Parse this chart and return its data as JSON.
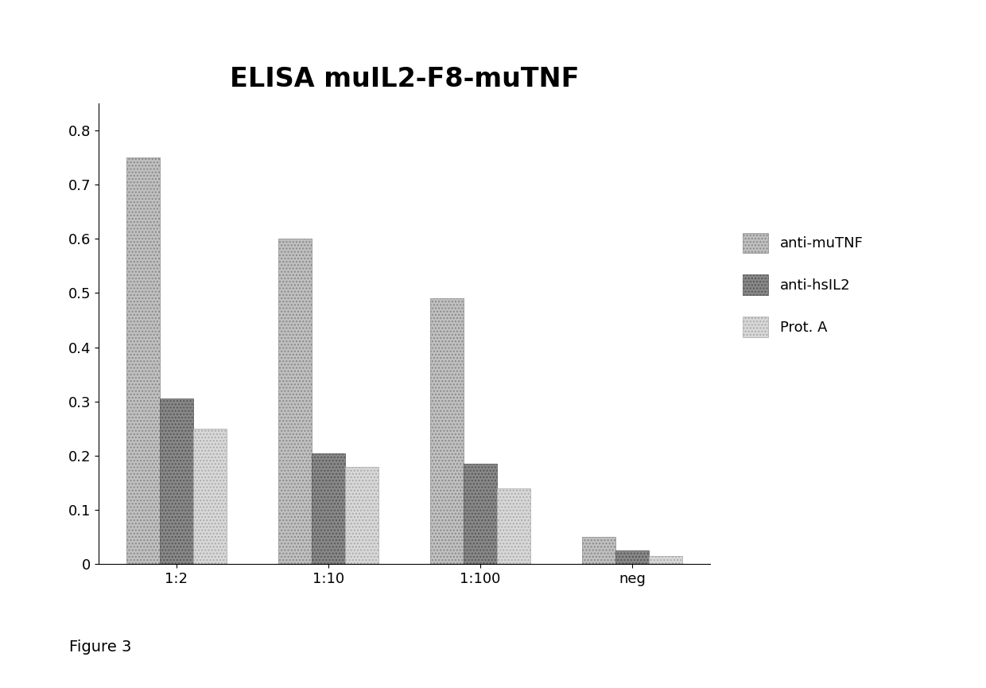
{
  "title": "ELISA muIL2-F8-muTNF",
  "categories": [
    "1:2",
    "1:10",
    "1:100",
    "neg"
  ],
  "series": {
    "anti-muTNF": [
      0.75,
      0.6,
      0.49,
      0.05
    ],
    "anti-hsIL2": [
      0.305,
      0.205,
      0.185,
      0.025
    ],
    "Prot. A": [
      0.25,
      0.18,
      0.14,
      0.015
    ]
  },
  "bar_colors": [
    "#c0c0c0",
    "#888888",
    "#d8d8d8"
  ],
  "edge_colors": [
    "#888888",
    "#555555",
    "#aaaaaa"
  ],
  "hatch_patterns": [
    "....",
    "....",
    "...."
  ],
  "legend_colors": [
    "#c0c0c0",
    "#888888",
    "#d8d8d8"
  ],
  "legend_ecs": [
    "#888888",
    "#555555",
    "#aaaaaa"
  ],
  "ylim": [
    0,
    0.85
  ],
  "yticks": [
    0,
    0.1,
    0.2,
    0.3,
    0.4,
    0.5,
    0.6,
    0.7,
    0.8
  ],
  "figure_label": "Figure 3",
  "title_fontsize": 24,
  "legend_fontsize": 13,
  "tick_fontsize": 13,
  "bar_width": 0.22,
  "background_color": "#ffffff"
}
